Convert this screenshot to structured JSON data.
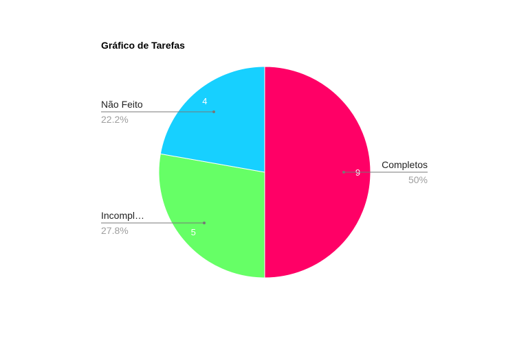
{
  "chart_data": {
    "type": "pie",
    "title": "Gráfico de Tarefas",
    "slices": [
      {
        "name": "Completos",
        "label": "Completos",
        "value": 9,
        "percent_label": "50%",
        "color": "#ff0066"
      },
      {
        "name": "Incompletos",
        "label": "Incompl…",
        "value": 5,
        "percent_label": "27.8%",
        "color": "#66ff66"
      },
      {
        "name": "Não Feito",
        "label": "Não Feito",
        "value": 4,
        "percent_label": "22.2%",
        "color": "#17d0ff"
      }
    ],
    "legend": "none",
    "start_angle": "12 o'clock",
    "direction": "clockwise"
  }
}
